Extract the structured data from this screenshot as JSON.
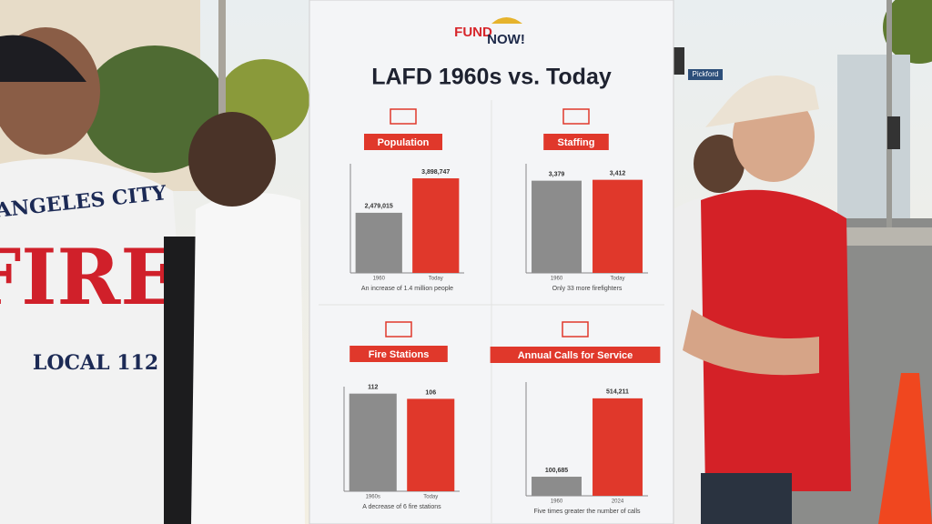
{
  "scene": {
    "logo_top": "FUND",
    "logo_bottom": "NOW!",
    "poster_title": "LAFD 1960s vs. Today",
    "shirt_line1": "LOS ANGELES CITY",
    "shirt_line2": "FIRE",
    "shirt_line3": "LOCAL 112",
    "street_sign": "Pickford"
  },
  "chart_data": [
    {
      "type": "bar",
      "title": "Population",
      "categories": [
        "1960",
        "Today"
      ],
      "values": [
        2479015,
        3898747
      ],
      "value_labels": [
        "2,479,015",
        "3,898,747"
      ],
      "colors": [
        "#8c8c8c",
        "#e0382b"
      ],
      "ylim": [
        0,
        4500000
      ],
      "caption": "An increase of 1.4 million people"
    },
    {
      "type": "bar",
      "title": "Staffing",
      "categories": [
        "1960",
        "Today"
      ],
      "values": [
        3379,
        3412
      ],
      "value_labels": [
        "3,379",
        "3,412"
      ],
      "colors": [
        "#8c8c8c",
        "#e0382b"
      ],
      "ylim": [
        0,
        4000
      ],
      "caption": "Only 33 more firefighters"
    },
    {
      "type": "bar",
      "title": "Fire Stations",
      "categories": [
        "1960s",
        "Today"
      ],
      "values": [
        112,
        106
      ],
      "colors": [
        "#8c8c8c",
        "#e0382b"
      ],
      "ylim": [
        0,
        120
      ],
      "caption": "A decrease of 6 fire stations"
    },
    {
      "type": "bar",
      "title": "Annual Calls for Service",
      "categories": [
        "1960",
        "2024"
      ],
      "values": [
        100685,
        514211
      ],
      "value_labels": [
        "100,685",
        "514,211"
      ],
      "colors": [
        "#8c8c8c",
        "#e0382b"
      ],
      "ylim": [
        0,
        600000
      ],
      "caption": "Five times greater the number of calls"
    }
  ]
}
